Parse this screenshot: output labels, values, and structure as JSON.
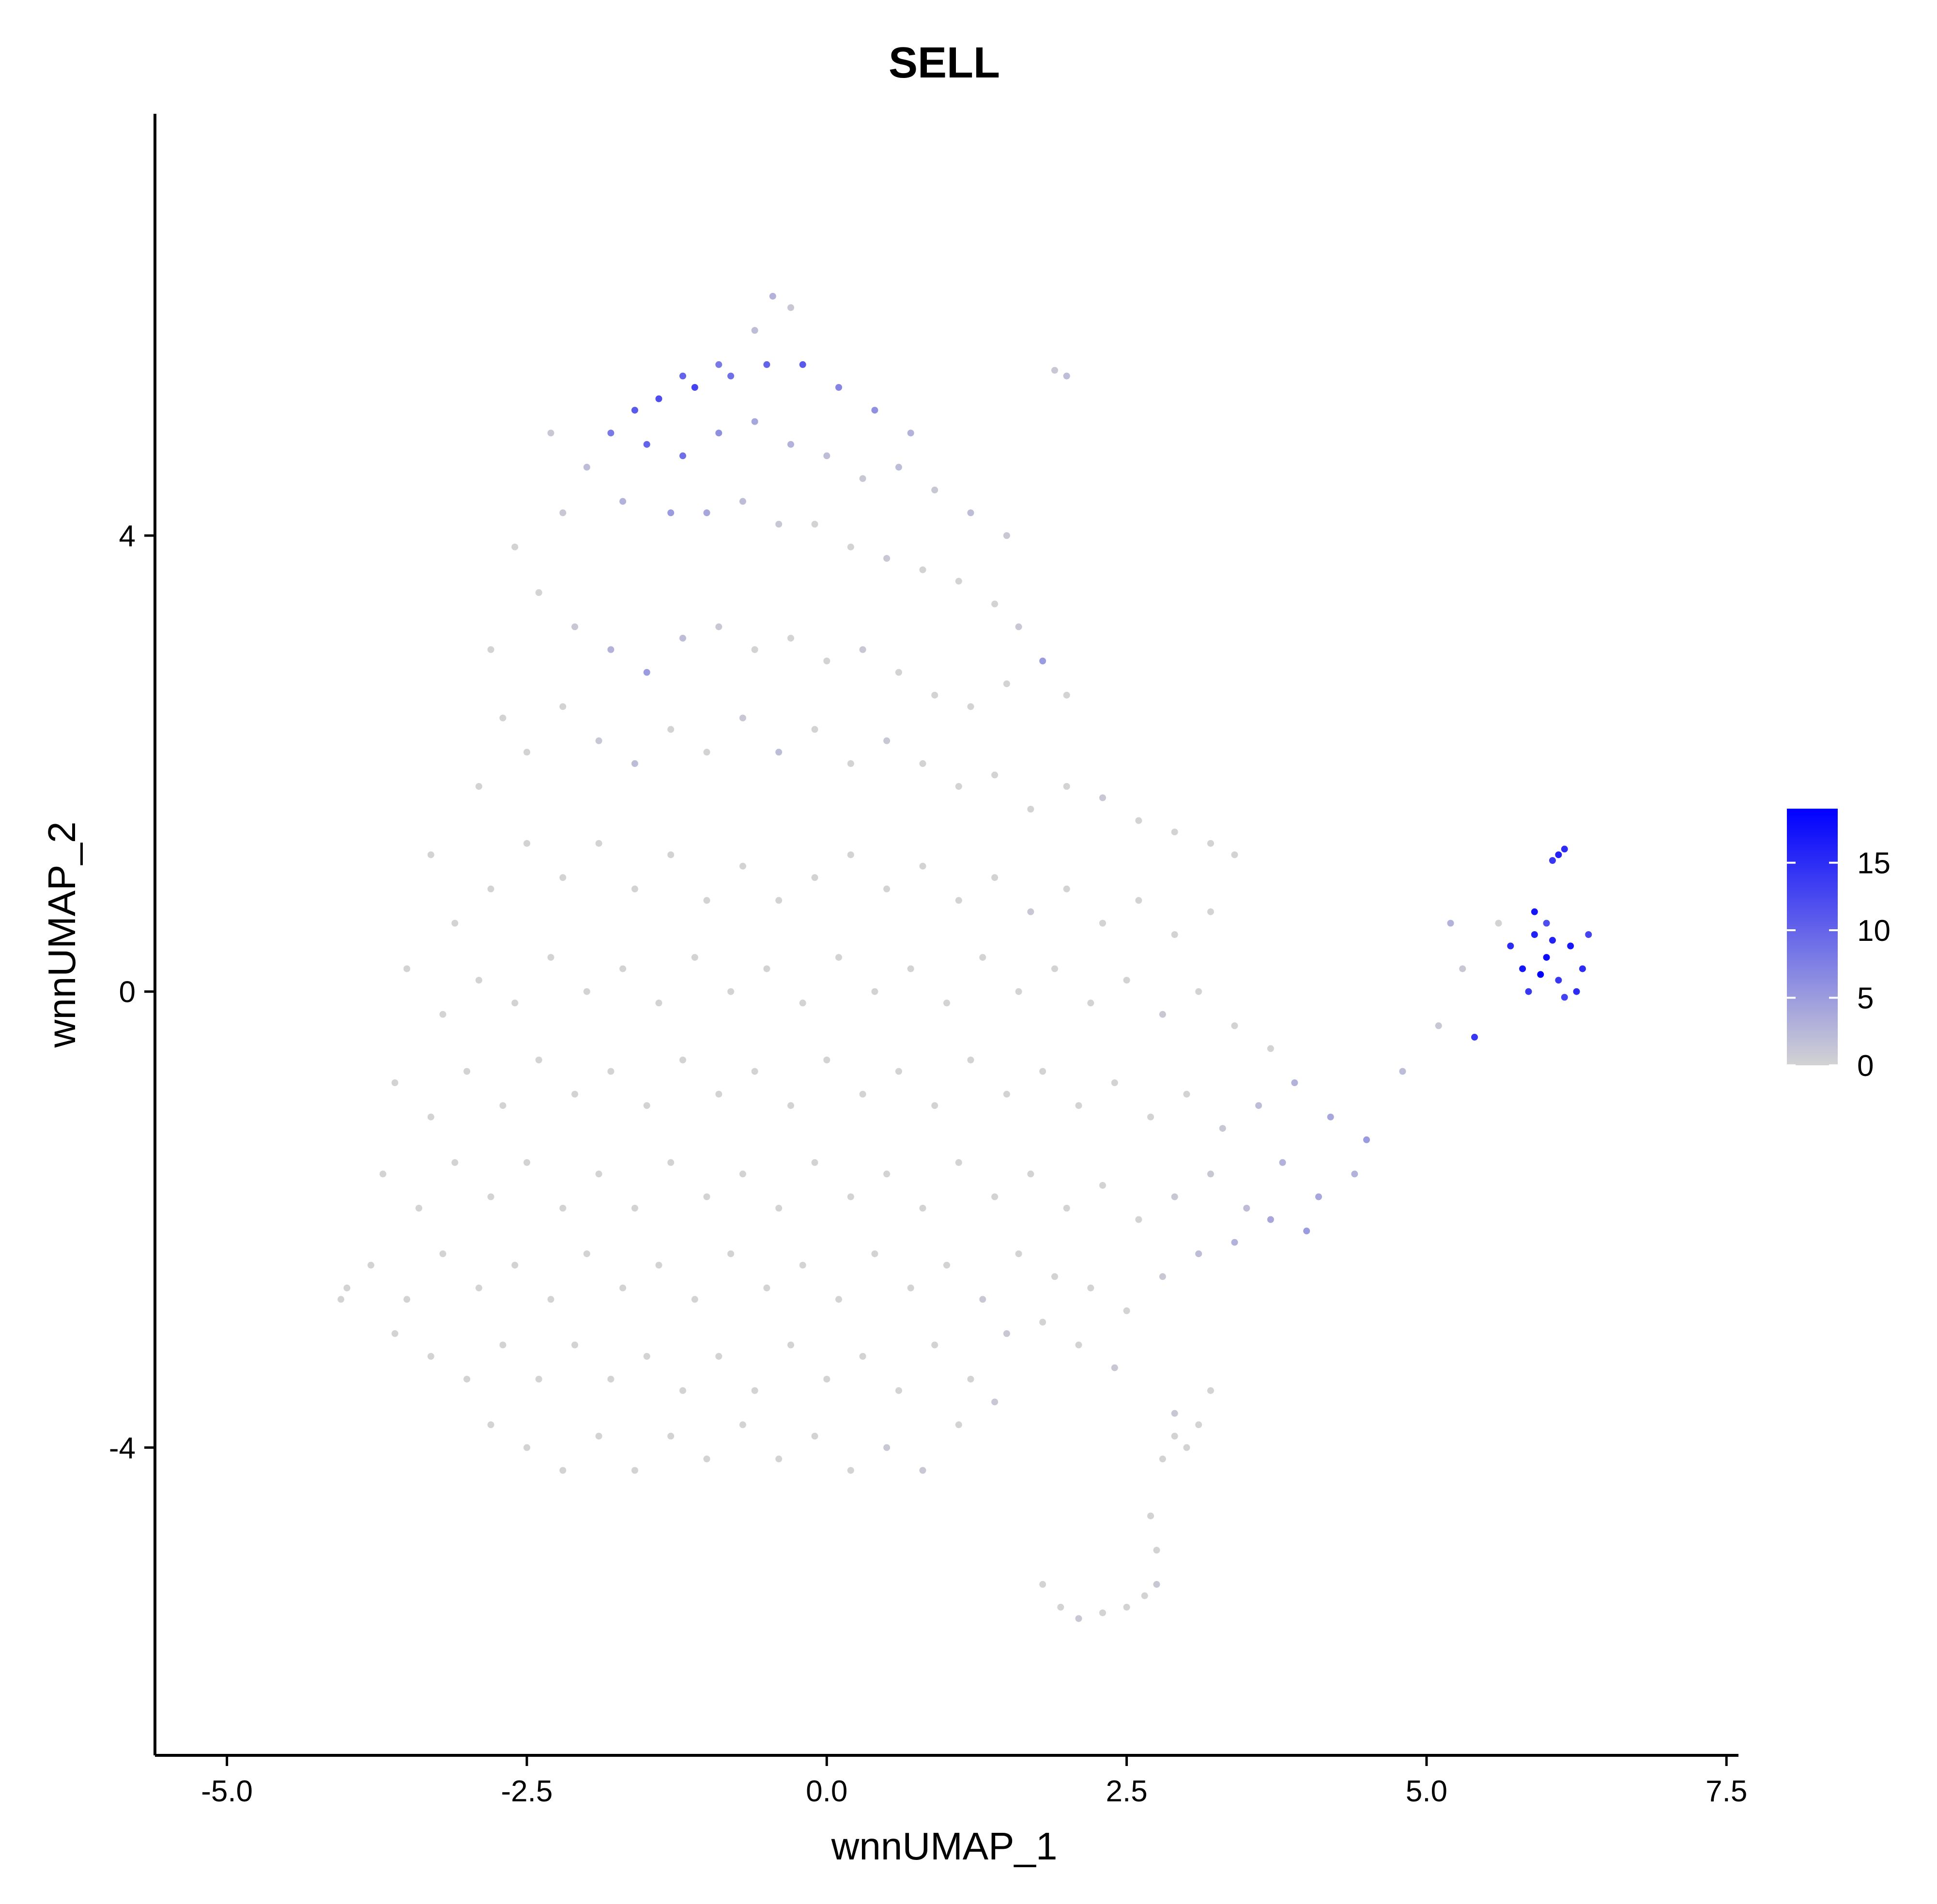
{
  "chart_data": {
    "type": "scatter",
    "title": "SELL",
    "xlabel": "wnnUMAP_1",
    "ylabel": "wnnUMAP_2",
    "xlim": [
      -5.6,
      7.6
    ],
    "ylim": [
      -6.7,
      7.7
    ],
    "x_ticks": [
      -5.0,
      -2.5,
      0.0,
      2.5,
      5.0,
      7.5
    ],
    "x_tick_labels": [
      "-5.0",
      "-2.5",
      "0.0",
      "2.5",
      "5.0",
      "7.5"
    ],
    "y_ticks": [
      -4,
      0,
      4
    ],
    "y_tick_labels": [
      "-4",
      "0",
      "4"
    ],
    "grid": false,
    "color_scale": {
      "min": 0,
      "max": 19,
      "low_color": "#d3d3d3",
      "high_color": "#0000ff",
      "ticks": [
        0,
        5,
        10,
        15
      ],
      "tick_labels": [
        "0",
        "5",
        "10",
        "15"
      ],
      "placement": "right"
    },
    "points": [
      [
        -0.45,
        6.1,
        3
      ],
      [
        -0.3,
        6.0,
        1
      ],
      [
        -0.6,
        5.8,
        2
      ],
      [
        -0.9,
        5.5,
        8
      ],
      [
        -1.2,
        5.4,
        10
      ],
      [
        -1.4,
        5.2,
        12
      ],
      [
        -1.6,
        5.1,
        11
      ],
      [
        -1.1,
        5.3,
        13
      ],
      [
        -0.8,
        5.4,
        9
      ],
      [
        -0.5,
        5.5,
        10
      ],
      [
        -0.2,
        5.5,
        11
      ],
      [
        0.1,
        5.3,
        7
      ],
      [
        0.4,
        5.1,
        6
      ],
      [
        0.7,
        4.9,
        3
      ],
      [
        -1.8,
        4.9,
        8
      ],
      [
        -1.5,
        4.8,
        10
      ],
      [
        -1.2,
        4.7,
        9
      ],
      [
        -0.9,
        4.9,
        6
      ],
      [
        -0.6,
        5.0,
        4
      ],
      [
        -0.3,
        4.8,
        3
      ],
      [
        0.0,
        4.7,
        2
      ],
      [
        0.3,
        4.5,
        1
      ],
      [
        0.6,
        4.6,
        2
      ],
      [
        0.9,
        4.4,
        1
      ],
      [
        1.2,
        4.2,
        2
      ],
      [
        1.5,
        4.0,
        1
      ],
      [
        -2.3,
        4.9,
        1
      ],
      [
        -2.0,
        4.6,
        2
      ],
      [
        -2.2,
        4.2,
        1
      ],
      [
        -1.7,
        4.3,
        3
      ],
      [
        -1.3,
        4.2,
        5
      ],
      [
        -1.0,
        4.2,
        4
      ],
      [
        -0.7,
        4.3,
        2
      ],
      [
        -0.4,
        4.1,
        1
      ],
      [
        -0.1,
        4.1,
        0
      ],
      [
        0.2,
        3.9,
        0
      ],
      [
        0.5,
        3.8,
        1
      ],
      [
        0.8,
        3.7,
        0
      ],
      [
        1.1,
        3.6,
        0
      ],
      [
        1.4,
        3.4,
        0
      ],
      [
        1.6,
        3.2,
        1
      ],
      [
        1.8,
        2.9,
        5
      ],
      [
        1.9,
        5.45,
        1
      ],
      [
        2.0,
        5.4,
        2
      ],
      [
        -2.6,
        3.9,
        0
      ],
      [
        -2.4,
        3.5,
        0
      ],
      [
        -2.1,
        3.2,
        1
      ],
      [
        -1.8,
        3.0,
        3
      ],
      [
        -1.5,
        2.8,
        5
      ],
      [
        -1.2,
        3.1,
        2
      ],
      [
        -0.9,
        3.2,
        1
      ],
      [
        -0.6,
        3.0,
        0
      ],
      [
        -0.3,
        3.1,
        0
      ],
      [
        0.0,
        2.9,
        0
      ],
      [
        0.3,
        3.0,
        1
      ],
      [
        0.6,
        2.8,
        0
      ],
      [
        0.9,
        2.6,
        0
      ],
      [
        1.2,
        2.5,
        0
      ],
      [
        1.5,
        2.7,
        0
      ],
      [
        2.0,
        2.6,
        0
      ],
      [
        -2.8,
        3.0,
        0
      ],
      [
        -2.7,
        2.4,
        0
      ],
      [
        -2.9,
        1.8,
        0
      ],
      [
        -2.5,
        2.1,
        0
      ],
      [
        -2.2,
        2.5,
        0
      ],
      [
        -1.9,
        2.2,
        1
      ],
      [
        -1.6,
        2.0,
        2
      ],
      [
        -1.3,
        2.3,
        0
      ],
      [
        -1.0,
        2.1,
        0
      ],
      [
        -0.7,
        2.4,
        1
      ],
      [
        -0.4,
        2.1,
        2
      ],
      [
        -0.1,
        2.3,
        0
      ],
      [
        0.2,
        2.0,
        0
      ],
      [
        0.5,
        2.2,
        1
      ],
      [
        0.8,
        2.0,
        0
      ],
      [
        1.1,
        1.8,
        0
      ],
      [
        1.4,
        1.9,
        0
      ],
      [
        1.7,
        1.6,
        0
      ],
      [
        2.0,
        1.8,
        0
      ],
      [
        2.3,
        1.7,
        1
      ],
      [
        2.6,
        1.5,
        0
      ],
      [
        2.9,
        1.4,
        0
      ],
      [
        3.2,
        1.3,
        0
      ],
      [
        3.4,
        1.2,
        0
      ],
      [
        -3.3,
        1.2,
        0
      ],
      [
        -3.1,
        0.6,
        0
      ],
      [
        -2.8,
        0.9,
        0
      ],
      [
        -2.5,
        1.3,
        0
      ],
      [
        -2.2,
        1.0,
        0
      ],
      [
        -1.9,
        1.3,
        0
      ],
      [
        -1.6,
        0.9,
        0
      ],
      [
        -1.3,
        1.2,
        0
      ],
      [
        -1.0,
        0.8,
        0
      ],
      [
        -0.7,
        1.1,
        0
      ],
      [
        -0.4,
        0.8,
        0
      ],
      [
        -0.1,
        1.0,
        0
      ],
      [
        0.2,
        1.2,
        0
      ],
      [
        0.5,
        0.9,
        0
      ],
      [
        0.8,
        1.1,
        0
      ],
      [
        1.1,
        0.8,
        0
      ],
      [
        1.4,
        1.0,
        0
      ],
      [
        1.7,
        0.7,
        1
      ],
      [
        2.0,
        0.9,
        0
      ],
      [
        2.3,
        0.6,
        0
      ],
      [
        2.6,
        0.8,
        0
      ],
      [
        2.9,
        0.5,
        0
      ],
      [
        3.2,
        0.7,
        0
      ],
      [
        -3.5,
        0.2,
        0
      ],
      [
        -3.2,
        -0.2,
        0
      ],
      [
        -2.9,
        0.1,
        0
      ],
      [
        -2.6,
        -0.1,
        0
      ],
      [
        -2.3,
        0.3,
        0
      ],
      [
        -2.0,
        0.0,
        0
      ],
      [
        -1.7,
        0.2,
        0
      ],
      [
        -1.4,
        -0.1,
        0
      ],
      [
        -1.1,
        0.3,
        0
      ],
      [
        -0.8,
        0.0,
        0
      ],
      [
        -0.5,
        0.2,
        0
      ],
      [
        -0.2,
        -0.1,
        0
      ],
      [
        0.1,
        0.3,
        0
      ],
      [
        0.4,
        0.0,
        0
      ],
      [
        0.7,
        0.2,
        0
      ],
      [
        1.0,
        -0.1,
        0
      ],
      [
        1.3,
        0.3,
        0
      ],
      [
        1.6,
        0.0,
        0
      ],
      [
        1.9,
        0.2,
        0
      ],
      [
        2.2,
        -0.1,
        0
      ],
      [
        2.5,
        0.1,
        0
      ],
      [
        2.8,
        -0.2,
        1
      ],
      [
        3.1,
        0.0,
        0
      ],
      [
        3.4,
        -0.3,
        0
      ],
      [
        3.7,
        -0.5,
        0
      ],
      [
        -3.6,
        -0.8,
        0
      ],
      [
        -3.3,
        -1.1,
        0
      ],
      [
        -3.0,
        -0.7,
        0
      ],
      [
        -2.7,
        -1.0,
        0
      ],
      [
        -2.4,
        -0.6,
        0
      ],
      [
        -2.1,
        -0.9,
        0
      ],
      [
        -1.8,
        -0.7,
        0
      ],
      [
        -1.5,
        -1.0,
        0
      ],
      [
        -1.2,
        -0.6,
        0
      ],
      [
        -0.9,
        -0.9,
        0
      ],
      [
        -0.6,
        -0.7,
        0
      ],
      [
        -0.3,
        -1.0,
        0
      ],
      [
        0.0,
        -0.6,
        0
      ],
      [
        0.3,
        -0.9,
        0
      ],
      [
        0.6,
        -0.7,
        0
      ],
      [
        0.9,
        -1.0,
        0
      ],
      [
        1.2,
        -0.6,
        0
      ],
      [
        1.5,
        -0.9,
        0
      ],
      [
        1.8,
        -0.7,
        0
      ],
      [
        2.1,
        -1.0,
        0
      ],
      [
        2.4,
        -0.8,
        0
      ],
      [
        2.7,
        -1.1,
        0
      ],
      [
        3.0,
        -0.9,
        0
      ],
      [
        3.3,
        -1.2,
        1
      ],
      [
        3.6,
        -1.0,
        2
      ],
      [
        3.9,
        -0.8,
        3
      ],
      [
        4.2,
        -1.1,
        4
      ],
      [
        4.5,
        -1.3,
        5
      ],
      [
        4.8,
        -0.7,
        2
      ],
      [
        5.1,
        -0.3,
        1
      ],
      [
        5.3,
        0.2,
        1
      ],
      [
        5.6,
        0.6,
        0
      ],
      [
        -3.7,
        -1.6,
        0
      ],
      [
        -3.4,
        -1.9,
        0
      ],
      [
        -3.1,
        -1.5,
        0
      ],
      [
        -2.8,
        -1.8,
        0
      ],
      [
        -2.5,
        -1.5,
        0
      ],
      [
        -2.2,
        -1.9,
        0
      ],
      [
        -1.9,
        -1.6,
        0
      ],
      [
        -1.6,
        -1.9,
        0
      ],
      [
        -1.3,
        -1.5,
        0
      ],
      [
        -1.0,
        -1.8,
        0
      ],
      [
        -0.7,
        -1.6,
        0
      ],
      [
        -0.4,
        -1.9,
        0
      ],
      [
        -0.1,
        -1.5,
        0
      ],
      [
        0.2,
        -1.8,
        0
      ],
      [
        0.5,
        -1.6,
        0
      ],
      [
        0.8,
        -1.9,
        0
      ],
      [
        1.1,
        -1.5,
        0
      ],
      [
        1.4,
        -1.8,
        0
      ],
      [
        1.7,
        -1.6,
        0
      ],
      [
        2.0,
        -1.9,
        0
      ],
      [
        2.3,
        -1.7,
        0
      ],
      [
        2.6,
        -2.0,
        0
      ],
      [
        2.9,
        -1.8,
        1
      ],
      [
        3.2,
        -1.6,
        1
      ],
      [
        3.5,
        -1.9,
        2
      ],
      [
        3.8,
        -1.5,
        3
      ],
      [
        4.1,
        -1.8,
        4
      ],
      [
        4.4,
        -1.6,
        3
      ],
      [
        -3.8,
        -2.4,
        0
      ],
      [
        -3.5,
        -2.7,
        0
      ],
      [
        -3.2,
        -2.3,
        0
      ],
      [
        -2.9,
        -2.6,
        0
      ],
      [
        -2.6,
        -2.4,
        0
      ],
      [
        -2.3,
        -2.7,
        0
      ],
      [
        -2.0,
        -2.3,
        0
      ],
      [
        -1.7,
        -2.6,
        0
      ],
      [
        -1.4,
        -2.4,
        0
      ],
      [
        -1.1,
        -2.7,
        0
      ],
      [
        -0.8,
        -2.3,
        0
      ],
      [
        -0.5,
        -2.6,
        0
      ],
      [
        -0.2,
        -2.4,
        0
      ],
      [
        0.1,
        -2.7,
        0
      ],
      [
        0.4,
        -2.3,
        0
      ],
      [
        0.7,
        -2.6,
        0
      ],
      [
        1.0,
        -2.4,
        0
      ],
      [
        1.3,
        -2.7,
        1
      ],
      [
        1.6,
        -2.3,
        0
      ],
      [
        1.9,
        -2.5,
        0
      ],
      [
        2.2,
        -2.6,
        0
      ],
      [
        2.5,
        -2.8,
        0
      ],
      [
        2.8,
        -2.5,
        1
      ],
      [
        3.1,
        -2.3,
        2
      ],
      [
        3.4,
        -2.2,
        3
      ],
      [
        3.7,
        -2.0,
        4
      ],
      [
        4.0,
        -2.1,
        5
      ],
      [
        -4.0,
        -2.6,
        0
      ],
      [
        -4.05,
        -2.7,
        0
      ],
      [
        -3.6,
        -3.0,
        0
      ],
      [
        -3.3,
        -3.2,
        0
      ],
      [
        -3.0,
        -3.4,
        0
      ],
      [
        -2.7,
        -3.1,
        0
      ],
      [
        -2.4,
        -3.4,
        0
      ],
      [
        -2.1,
        -3.1,
        0
      ],
      [
        -1.8,
        -3.4,
        0
      ],
      [
        -1.5,
        -3.2,
        0
      ],
      [
        -1.2,
        -3.5,
        0
      ],
      [
        -0.9,
        -3.2,
        0
      ],
      [
        -0.6,
        -3.5,
        0
      ],
      [
        -0.3,
        -3.1,
        0
      ],
      [
        0.0,
        -3.4,
        0
      ],
      [
        0.3,
        -3.2,
        0
      ],
      [
        0.6,
        -3.5,
        0
      ],
      [
        0.9,
        -3.1,
        0
      ],
      [
        1.2,
        -3.4,
        0
      ],
      [
        1.5,
        -3.0,
        1
      ],
      [
        1.8,
        -2.9,
        0
      ],
      [
        2.1,
        -3.1,
        0
      ],
      [
        2.4,
        -3.3,
        1
      ],
      [
        -2.8,
        -3.8,
        0
      ],
      [
        -2.5,
        -4.0,
        0
      ],
      [
        -2.2,
        -4.2,
        0
      ],
      [
        -1.9,
        -3.9,
        0
      ],
      [
        -1.6,
        -4.2,
        0
      ],
      [
        -1.3,
        -3.9,
        0
      ],
      [
        -1.0,
        -4.1,
        0
      ],
      [
        -0.7,
        -3.8,
        0
      ],
      [
        -0.4,
        -4.1,
        0
      ],
      [
        -0.1,
        -3.9,
        0
      ],
      [
        0.2,
        -4.2,
        0
      ],
      [
        0.5,
        -4.0,
        1
      ],
      [
        0.8,
        -4.2,
        1
      ],
      [
        1.1,
        -3.8,
        0
      ],
      [
        1.4,
        -3.6,
        1
      ],
      [
        2.9,
        -3.9,
        0
      ],
      [
        3.0,
        -4.0,
        0
      ],
      [
        2.8,
        -4.1,
        0
      ],
      [
        3.1,
        -3.8,
        0
      ],
      [
        2.9,
        -3.7,
        1
      ],
      [
        3.2,
        -3.5,
        0
      ],
      [
        1.8,
        -5.2,
        0
      ],
      [
        1.95,
        -5.4,
        0
      ],
      [
        2.1,
        -5.5,
        1
      ],
      [
        2.3,
        -5.45,
        0
      ],
      [
        2.5,
        -5.4,
        0
      ],
      [
        2.65,
        -5.3,
        0
      ],
      [
        2.75,
        -5.2,
        1
      ],
      [
        2.75,
        -4.9,
        0
      ],
      [
        2.7,
        -4.6,
        0
      ],
      [
        5.7,
        0.4,
        15
      ],
      [
        5.8,
        0.2,
        17
      ],
      [
        5.9,
        0.5,
        16
      ],
      [
        6.0,
        0.3,
        18
      ],
      [
        6.1,
        0.1,
        14
      ],
      [
        6.2,
        0.4,
        17
      ],
      [
        6.3,
        0.2,
        15
      ],
      [
        6.35,
        0.5,
        13
      ],
      [
        6.0,
        0.6,
        12
      ],
      [
        5.85,
        0.0,
        14
      ],
      [
        6.15,
        -0.05,
        13
      ],
      [
        6.25,
        0.0,
        15
      ],
      [
        5.95,
        0.15,
        19
      ],
      [
        6.05,
        0.45,
        16
      ],
      [
        6.1,
        1.2,
        16
      ],
      [
        6.15,
        1.25,
        15
      ],
      [
        6.05,
        1.15,
        14
      ],
      [
        5.9,
        0.7,
        17
      ],
      [
        5.4,
        -0.4,
        14
      ],
      [
        5.2,
        0.6,
        3
      ]
    ]
  }
}
